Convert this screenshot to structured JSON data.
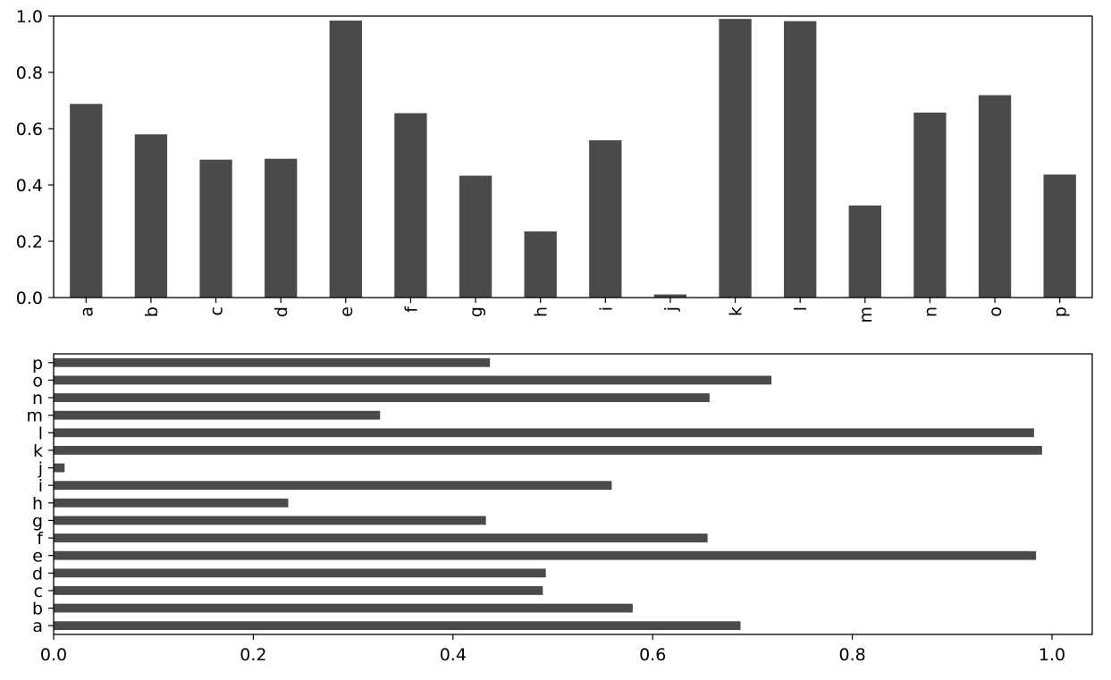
{
  "chart_data": [
    {
      "type": "bar",
      "orientation": "vertical",
      "categories": [
        "a",
        "b",
        "c",
        "d",
        "e",
        "f",
        "g",
        "h",
        "i",
        "j",
        "k",
        "l",
        "m",
        "n",
        "o",
        "p"
      ],
      "values": [
        0.688,
        0.58,
        0.49,
        0.493,
        0.984,
        0.655,
        0.433,
        0.235,
        0.559,
        0.011,
        0.99,
        0.982,
        0.327,
        0.657,
        0.719,
        0.437
      ],
      "ylim": [
        0,
        1.0
      ],
      "yticks": [
        "0.0",
        "0.2",
        "0.4",
        "0.6",
        "0.8",
        "1.0"
      ],
      "tick_label_rotation": "vertical",
      "bar_color": "#4a4a4a",
      "grid": false,
      "title": "",
      "xlabel": "",
      "ylabel": ""
    },
    {
      "type": "bar",
      "orientation": "horizontal",
      "categories": [
        "a",
        "b",
        "c",
        "d",
        "e",
        "f",
        "g",
        "h",
        "i",
        "j",
        "k",
        "l",
        "m",
        "n",
        "o",
        "p"
      ],
      "values": [
        0.688,
        0.58,
        0.49,
        0.493,
        0.984,
        0.655,
        0.433,
        0.235,
        0.559,
        0.011,
        0.99,
        0.982,
        0.327,
        0.657,
        0.719,
        0.437
      ],
      "xlim": [
        0,
        1.0
      ],
      "xticks": [
        "0.0",
        "0.2",
        "0.4",
        "0.6",
        "0.8",
        "1.0"
      ],
      "bar_color": "#4a4a4a",
      "grid": false,
      "title": "",
      "xlabel": "",
      "ylabel": ""
    }
  ]
}
